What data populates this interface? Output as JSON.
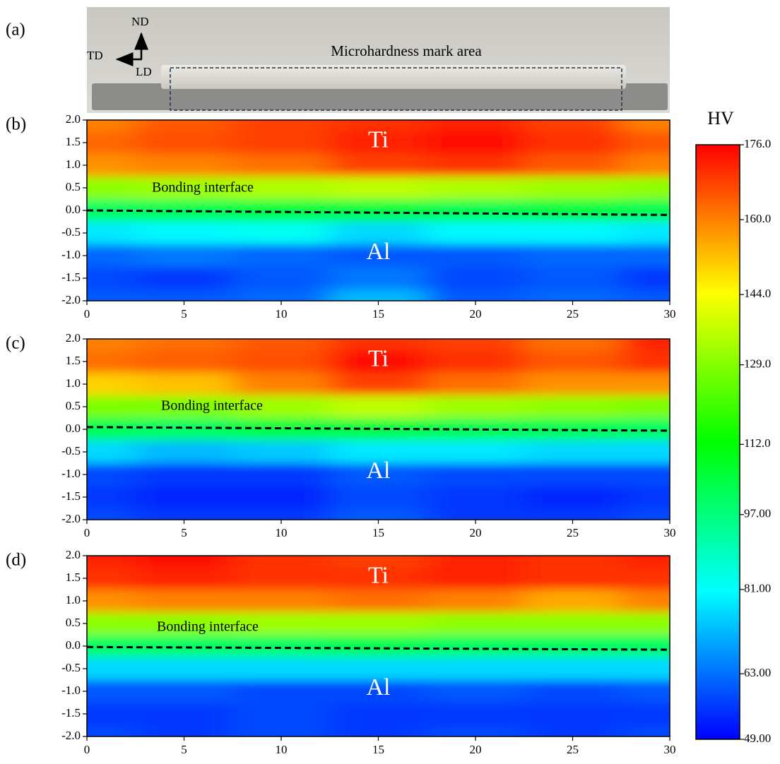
{
  "photo": {
    "label": "(a)",
    "nd": "ND",
    "td": "TD",
    "ld": "LD",
    "caption": "Microhardness mark area"
  },
  "colorbar": {
    "title": "HV",
    "lim": [
      49,
      176
    ],
    "colors": [
      "#0000ff",
      "#00ffff",
      "#00ff00",
      "#ffff00",
      "#ff0000"
    ],
    "ticks": [
      {
        "value": 176,
        "label": "176.0"
      },
      {
        "value": 160,
        "label": "160.0"
      },
      {
        "value": 144,
        "label": "144.0"
      },
      {
        "value": 129,
        "label": "129.0"
      },
      {
        "value": 112,
        "label": "112.0"
      },
      {
        "value": 97,
        "label": "97.00"
      },
      {
        "value": 81,
        "label": "81.00"
      },
      {
        "value": 63,
        "label": "63.00"
      },
      {
        "value": 49,
        "label": "49.00"
      }
    ]
  },
  "chart_data": [
    {
      "type": "contour",
      "panel_label": "(b)",
      "top_label": "Ti",
      "bottom_label": "Al",
      "annotation": "Bonding interface",
      "x": [
        0,
        5,
        10,
        15,
        20,
        25,
        30
      ],
      "y": [
        2,
        1.5,
        1,
        0.5,
        0,
        -0.5,
        -1,
        -1.5,
        -2
      ],
      "z": [
        [
          160,
          165,
          168,
          170,
          172,
          168,
          160
        ],
        [
          163,
          166,
          168,
          172,
          175,
          170,
          165
        ],
        [
          158,
          160,
          162,
          168,
          170,
          165,
          160
        ],
        [
          130,
          132,
          134,
          136,
          134,
          132,
          130
        ],
        [
          100,
          102,
          104,
          104,
          102,
          104,
          102
        ],
        [
          78,
          80,
          82,
          76,
          80,
          80,
          78
        ],
        [
          62,
          64,
          62,
          60,
          60,
          62,
          62
        ],
        [
          58,
          56,
          60,
          64,
          58,
          60,
          56
        ],
        [
          60,
          60,
          62,
          72,
          60,
          62,
          60
        ]
      ],
      "interface": {
        "x": [
          0,
          30
        ],
        "y": [
          0,
          -0.1
        ]
      },
      "xlim": [
        0,
        30
      ],
      "ylim": [
        -2,
        2
      ],
      "xticks": [
        0,
        5,
        10,
        15,
        20,
        25,
        30
      ],
      "yticks": [
        {
          "value": 2,
          "label": "2.0"
        },
        {
          "value": 1.5,
          "label": "1.5"
        },
        {
          "value": 1,
          "label": "1.0"
        },
        {
          "value": 0.5,
          "label": "0.5"
        },
        {
          "value": 0,
          "label": "0.0"
        },
        {
          "value": -0.5,
          "label": "-0.5"
        },
        {
          "value": -1,
          "label": "-1.0"
        },
        {
          "value": -1.5,
          "label": "-1.5"
        },
        {
          "value": -2,
          "label": "-2.0"
        }
      ]
    },
    {
      "type": "contour",
      "panel_label": "(c)",
      "top_label": "Ti",
      "bottom_label": "Al",
      "annotation": "Bonding interface",
      "x": [
        0,
        5,
        10,
        15,
        20,
        25,
        30
      ],
      "y": [
        2,
        1.5,
        1,
        0.5,
        0,
        -0.5,
        -1,
        -1.5,
        -2
      ],
      "z": [
        [
          160,
          162,
          165,
          170,
          168,
          162,
          172
        ],
        [
          162,
          164,
          166,
          174,
          170,
          165,
          170
        ],
        [
          150,
          152,
          160,
          168,
          162,
          158,
          158
        ],
        [
          128,
          128,
          132,
          136,
          132,
          130,
          128
        ],
        [
          102,
          100,
          104,
          104,
          102,
          102,
          100
        ],
        [
          76,
          72,
          74,
          78,
          78,
          76,
          76
        ],
        [
          58,
          56,
          56,
          60,
          58,
          58,
          58
        ],
        [
          56,
          54,
          54,
          58,
          56,
          54,
          56
        ],
        [
          58,
          56,
          56,
          60,
          56,
          56,
          58
        ]
      ],
      "interface": {
        "x": [
          0,
          30
        ],
        "y": [
          0.05,
          -0.03
        ]
      },
      "xlim": [
        0,
        30
      ],
      "ylim": [
        -2,
        2
      ],
      "xticks": [
        0,
        5,
        10,
        15,
        20,
        25,
        30
      ],
      "yticks": [
        {
          "value": 2,
          "label": "2.0"
        },
        {
          "value": 1.5,
          "label": "1.5"
        },
        {
          "value": 1,
          "label": "1.0"
        },
        {
          "value": 0.5,
          "label": "0.5"
        },
        {
          "value": 0,
          "label": "0.0"
        },
        {
          "value": -0.5,
          "label": "-0.5"
        },
        {
          "value": -1,
          "label": "-1.0"
        },
        {
          "value": -1.5,
          "label": "-1.5"
        },
        {
          "value": -2,
          "label": "-2.0"
        }
      ]
    },
    {
      "type": "contour",
      "panel_label": "(d)",
      "top_label": "Ti",
      "bottom_label": "Al",
      "annotation": "Bonding interface",
      "x": [
        0,
        5,
        10,
        15,
        20,
        25,
        30
      ],
      "y": [
        2,
        1.5,
        1,
        0.5,
        0,
        -0.5,
        -1,
        -1.5,
        -2
      ],
      "z": [
        [
          172,
          174,
          170,
          168,
          172,
          170,
          172
        ],
        [
          170,
          172,
          170,
          170,
          172,
          170,
          170
        ],
        [
          158,
          160,
          160,
          162,
          160,
          155,
          160
        ],
        [
          130,
          130,
          132,
          132,
          130,
          130,
          130
        ],
        [
          100,
          100,
          100,
          102,
          100,
          100,
          100
        ],
        [
          76,
          76,
          76,
          76,
          76,
          76,
          76
        ],
        [
          60,
          60,
          58,
          58,
          60,
          58,
          60
        ],
        [
          56,
          56,
          58,
          56,
          56,
          56,
          56
        ],
        [
          58,
          56,
          58,
          56,
          58,
          56,
          58
        ]
      ],
      "interface": {
        "x": [
          0,
          30
        ],
        "y": [
          -0.02,
          -0.08
        ]
      },
      "xlim": [
        0,
        30
      ],
      "ylim": [
        -2,
        2
      ],
      "xticks": [
        0,
        5,
        10,
        15,
        20,
        25,
        30
      ],
      "yticks": [
        {
          "value": 2,
          "label": "2.0"
        },
        {
          "value": 1.5,
          "label": "1.5"
        },
        {
          "value": 1,
          "label": "1.0"
        },
        {
          "value": 0.5,
          "label": "0.5"
        },
        {
          "value": 0,
          "label": "0.0"
        },
        {
          "value": -0.5,
          "label": "-0.5"
        },
        {
          "value": -1,
          "label": "-1.0"
        },
        {
          "value": -1.5,
          "label": "-1.5"
        },
        {
          "value": -2,
          "label": "-2.0"
        }
      ]
    }
  ]
}
